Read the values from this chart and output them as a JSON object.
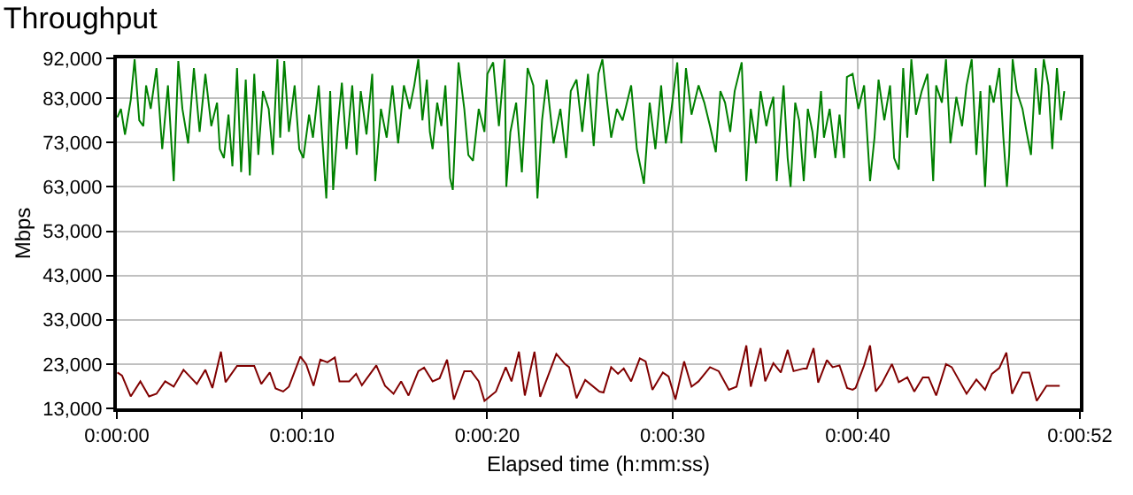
{
  "chart_data": {
    "type": "line",
    "title": "Throughput",
    "xlabel": "Elapsed time (h:mm:ss)",
    "ylabel": "Mbps",
    "xlim": [
      0,
      52
    ],
    "ylim": [
      13000,
      92000
    ],
    "xticks": [
      {
        "value": 0,
        "label": "0:00:00"
      },
      {
        "value": 10,
        "label": "0:00:10"
      },
      {
        "value": 20,
        "label": "0:00:20"
      },
      {
        "value": 30,
        "label": "0:00:30"
      },
      {
        "value": 40,
        "label": "0:00:40"
      },
      {
        "value": 52,
        "label": "0:00:52"
      }
    ],
    "yticks": [
      {
        "value": 13000,
        "label": "13,000"
      },
      {
        "value": 23000,
        "label": "23,000"
      },
      {
        "value": 33000,
        "label": "33,000"
      },
      {
        "value": 43000,
        "label": "43,000"
      },
      {
        "value": 53000,
        "label": "53,000"
      },
      {
        "value": 63000,
        "label": "63,000"
      },
      {
        "value": 73000,
        "label": "73,000"
      },
      {
        "value": 83000,
        "label": "83,000"
      },
      {
        "value": 92000,
        "label": "92,000"
      }
    ],
    "grid": true,
    "marker": "none",
    "line_style": "solid",
    "series": [
      {
        "color": "#008000",
        "x": [
          0.03,
          0.22,
          0.44,
          0.75,
          0.96,
          1.21,
          1.43,
          1.58,
          1.83,
          2.14,
          2.45,
          2.76,
          3.07,
          3.32,
          3.54,
          3.85,
          4.16,
          4.47,
          4.78,
          5.1,
          5.41,
          5.56,
          5.78,
          6.03,
          6.24,
          6.49,
          6.71,
          6.96,
          7.18,
          7.42,
          7.64,
          7.89,
          8.2,
          8.42,
          8.67,
          8.82,
          9.04,
          9.29,
          9.6,
          9.85,
          10.07,
          10.38,
          10.59,
          10.9,
          11.31,
          11.52,
          11.68,
          11.93,
          12.15,
          12.4,
          12.71,
          12.95,
          13.17,
          13.48,
          13.79,
          13.95,
          14.26,
          14.57,
          14.88,
          15.19,
          15.5,
          15.81,
          16.06,
          16.28,
          16.5,
          16.74,
          16.9,
          17.05,
          17.3,
          17.52,
          17.74,
          17.99,
          18.14,
          18.45,
          18.76,
          18.98,
          19.23,
          19.54,
          19.85,
          20.01,
          20.32,
          20.63,
          20.94,
          21.03,
          21.25,
          21.56,
          21.87,
          22.18,
          22.49,
          22.71,
          22.96,
          23.21,
          23.58,
          23.95,
          24.26,
          24.51,
          24.82,
          25.13,
          25.44,
          25.75,
          26.0,
          26.22,
          26.37,
          26.69,
          27.0,
          27.31,
          27.77,
          28.08,
          28.46,
          28.77,
          29.08,
          29.39,
          29.64,
          29.95,
          30.26,
          30.48,
          30.73,
          31.03,
          31.41,
          31.72,
          32.03,
          32.34,
          32.59,
          32.84,
          33.12,
          33.36,
          33.74,
          33.99,
          34.23,
          34.51,
          34.76,
          35.07,
          35.26,
          35.45,
          35.63,
          35.85,
          36.0,
          36.22,
          36.38,
          36.63,
          36.84,
          37.09,
          37.31,
          37.56,
          37.71,
          38.02,
          38.18,
          38.49,
          38.8,
          39.02,
          39.27,
          39.42,
          39.73,
          40.04,
          40.35,
          40.67,
          40.91,
          41.13,
          41.44,
          41.75,
          41.97,
          42.22,
          42.46,
          42.68,
          42.9,
          43.15,
          43.46,
          43.77,
          44.08,
          44.24,
          44.55,
          44.77,
          45.01,
          45.33,
          45.64,
          45.88,
          46.16,
          46.41,
          46.63,
          46.88,
          47.13,
          47.34,
          47.65,
          47.87,
          48.06,
          48.18,
          48.37,
          48.59,
          48.9,
          49.12,
          49.36,
          49.61,
          49.83,
          50.05,
          50.3,
          50.51,
          50.76,
          50.98,
          51.16
        ],
        "values": [
          78700,
          80600,
          74800,
          82600,
          91800,
          78000,
          76700,
          85900,
          80600,
          89800,
          71500,
          85900,
          64300,
          91400,
          80600,
          72800,
          89800,
          75400,
          88500,
          76700,
          82000,
          71500,
          69500,
          79300,
          67600,
          89800,
          66300,
          87200,
          65600,
          88500,
          70200,
          84600,
          80600,
          70200,
          91800,
          74100,
          91400,
          75400,
          85900,
          71500,
          69500,
          79300,
          74100,
          85900,
          60400,
          84600,
          62300,
          76700,
          86500,
          71500,
          85900,
          70200,
          84600,
          74800,
          88500,
          64300,
          80600,
          74100,
          85900,
          72800,
          85900,
          80600,
          85900,
          91800,
          78000,
          87200,
          75400,
          71500,
          82000,
          76700,
          85900,
          65000,
          62300,
          91100,
          80600,
          70200,
          68900,
          80600,
          75400,
          88500,
          91100,
          76700,
          91800,
          63000,
          75400,
          82000,
          66300,
          89800,
          85900,
          60400,
          78000,
          87200,
          72800,
          80600,
          69500,
          84600,
          87200,
          75400,
          88500,
          72200,
          88500,
          91800,
          85900,
          74100,
          80600,
          78000,
          85900,
          71500,
          63700,
          82000,
          71500,
          85900,
          72800,
          80600,
          91100,
          72800,
          89800,
          79300,
          85900,
          82000,
          76700,
          70800,
          84600,
          82000,
          75400,
          84600,
          91100,
          64300,
          80600,
          72800,
          84600,
          76700,
          80600,
          83300,
          64300,
          78000,
          85900,
          69500,
          63000,
          82000,
          78000,
          64300,
          80600,
          75400,
          69500,
          84600,
          74100,
          80600,
          69500,
          79300,
          69500,
          87800,
          88500,
          80600,
          85900,
          64300,
          74100,
          87200,
          78000,
          85900,
          69500,
          66900,
          89800,
          74100,
          91800,
          79300,
          84600,
          88500,
          64300,
          85900,
          82000,
          91800,
          72800,
          83300,
          76700,
          85900,
          91800,
          70200,
          84600,
          63000,
          85900,
          82000,
          89800,
          74100,
          63000,
          70200,
          91800,
          84600,
          80600,
          75400,
          70200,
          89800,
          79300,
          91800,
          85900,
          71500,
          89800,
          78000,
          84600
        ]
      },
      {
        "color": "#800000",
        "x": [
          0.03,
          0.28,
          0.75,
          1.27,
          1.74,
          2.14,
          2.61,
          3.07,
          3.6,
          4.32,
          4.78,
          5.16,
          5.62,
          5.87,
          6.49,
          7.42,
          7.8,
          8.26,
          8.57,
          8.98,
          9.29,
          9.91,
          10.22,
          10.62,
          10.99,
          11.37,
          11.77,
          12.02,
          12.55,
          12.92,
          13.23,
          14.01,
          14.48,
          14.94,
          15.35,
          15.75,
          16.28,
          16.59,
          17.05,
          17.43,
          17.83,
          18.2,
          18.76,
          19.13,
          19.54,
          19.85,
          20.47,
          21.0,
          21.31,
          21.71,
          22.03,
          22.55,
          22.86,
          23.73,
          24.2,
          24.42,
          24.82,
          25.29,
          26.06,
          26.28,
          26.69,
          27.06,
          27.37,
          27.77,
          28.24,
          28.55,
          28.92,
          29.48,
          29.79,
          30.16,
          30.63,
          31.03,
          31.41,
          32.03,
          32.5,
          33.05,
          33.46,
          33.99,
          34.23,
          34.76,
          35.01,
          35.45,
          35.85,
          36.22,
          36.54,
          37.09,
          37.25,
          37.62,
          37.87,
          38.34,
          38.65,
          39.02,
          39.43,
          39.73,
          39.89,
          40.35,
          40.67,
          40.98,
          41.29,
          41.85,
          42.22,
          42.68,
          43.06,
          43.52,
          43.83,
          44.24,
          44.77,
          45.08,
          45.88,
          46.41,
          46.88,
          47.25,
          47.65,
          48.03,
          48.34,
          48.9,
          49.27,
          49.67,
          50.2,
          50.91
        ],
        "values": [
          21100,
          20400,
          15700,
          19100,
          15700,
          16300,
          19100,
          17900,
          21700,
          18500,
          21700,
          17600,
          25800,
          18900,
          22600,
          22600,
          18500,
          21100,
          17500,
          16800,
          17900,
          24700,
          23000,
          18100,
          24000,
          23400,
          24500,
          19100,
          19100,
          20800,
          18200,
          22700,
          18100,
          16300,
          19100,
          15900,
          21400,
          22200,
          19100,
          19800,
          24000,
          15000,
          21400,
          21400,
          19100,
          14700,
          16800,
          22300,
          19100,
          25800,
          15900,
          25800,
          15600,
          25300,
          23000,
          22300,
          15300,
          19400,
          16800,
          16600,
          22300,
          20800,
          22000,
          19100,
          24300,
          23600,
          17200,
          21100,
          20200,
          15000,
          23600,
          17900,
          19100,
          22300,
          21400,
          17200,
          17900,
          27200,
          17900,
          26600,
          19100,
          23200,
          21100,
          26200,
          21400,
          22000,
          22000,
          26600,
          18800,
          23900,
          22300,
          22700,
          17600,
          17200,
          17600,
          22700,
          27200,
          16800,
          18500,
          23000,
          18900,
          20000,
          16800,
          20000,
          20000,
          15900,
          23000,
          22300,
          16300,
          19500,
          17200,
          20800,
          22100,
          25600,
          16300,
          21100,
          21100,
          14700,
          18100,
          18100
        ]
      }
    ]
  }
}
